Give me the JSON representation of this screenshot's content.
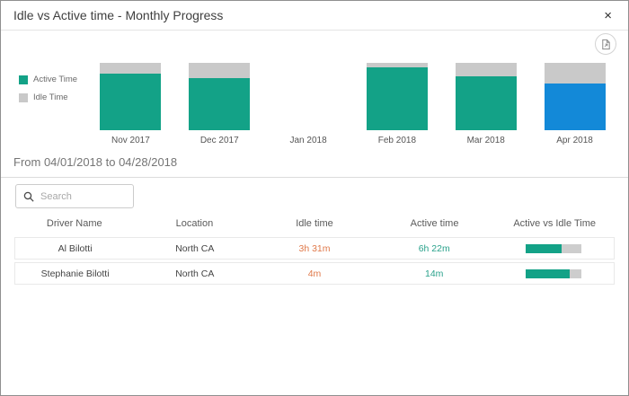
{
  "header": {
    "title": "Idle vs Active time - Monthly Progress",
    "close_glyph": "×"
  },
  "colors": {
    "active": "#13a287",
    "idle": "#c9c9c9",
    "highlight": "#1389d8",
    "idle_text": "#e0794a",
    "active_text": "#2aa28c"
  },
  "chart_data": {
    "type": "bar",
    "stacked": true,
    "title": "Idle vs Active time - Monthly Progress",
    "categories": [
      "Nov 2017",
      "Dec 2017",
      "Jan 2018",
      "Feb 2018",
      "Mar 2018",
      "Apr 2018"
    ],
    "series": [
      {
        "name": "Active Time",
        "values": [
          84,
          78,
          null,
          94,
          80,
          69
        ]
      },
      {
        "name": "Idle Time",
        "values": [
          16,
          22,
          null,
          6,
          20,
          31
        ]
      }
    ],
    "unit": "percent",
    "ylim": [
      0,
      100
    ],
    "grid": false,
    "legend_position": "left",
    "highlighted_category": "Apr 2018"
  },
  "filters": {
    "date_range": "From 04/01/2018 to 04/28/2018"
  },
  "search": {
    "placeholder": "Search"
  },
  "table": {
    "columns": [
      "Driver Name",
      "Location",
      "Idle time",
      "Active time",
      "Active vs Idle Time"
    ],
    "rows": [
      {
        "driver": "Al Bilotti",
        "location": "North CA",
        "idle_time": "3h 31m",
        "active_time": "6h 22m",
        "active_pct": 64
      },
      {
        "driver": "Stephanie Bilotti",
        "location": "North CA",
        "idle_time": "4m",
        "active_time": "14m",
        "active_pct": 78
      }
    ]
  }
}
